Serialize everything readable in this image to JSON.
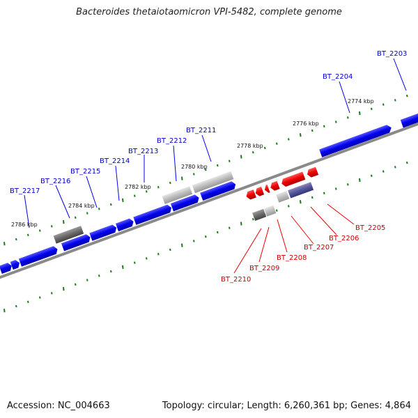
{
  "title": "Bacteroides thetaiotaomicron VPI-5482, complete genome",
  "footer": {
    "accession": "Accession: NC_004663",
    "summary": "Topology: circular; Length: 6,260,361 bp; Genes: 4,864"
  },
  "colors": {
    "forward_gene": "#0000ee",
    "reverse_gene": "#ee0000",
    "pseudo_gray": "#777777",
    "light_gray": "#bbbbbb",
    "purple_gene": "#555599",
    "backbone": "#8a8a8a",
    "tick": "#1a7a1a",
    "forward_label": "#0000cc",
    "reverse_label": "#cc0000"
  },
  "kbp_labels": [
    "2774 kbp",
    "2776 kbp",
    "2778 kbp",
    "2780 kbp",
    "2782 kbp",
    "2784 kbp",
    "2786 kbp"
  ],
  "forward_genes": [
    "BT_2203",
    "BT_2204",
    "BT_2211",
    "BT_2212",
    "BT_2213",
    "BT_2214",
    "BT_2215",
    "BT_2216",
    "BT_2217"
  ],
  "reverse_genes": [
    "BT_2205",
    "BT_2206",
    "BT_2207",
    "BT_2208",
    "BT_2209",
    "BT_2210"
  ]
}
